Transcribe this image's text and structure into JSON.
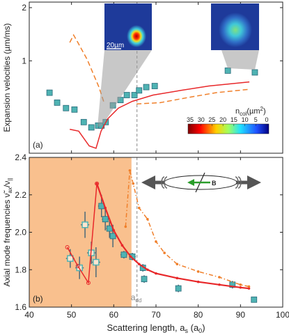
{
  "chart_data": [
    {
      "type": "scatter",
      "panel_label": "(a)",
      "ylabel": "Expansion velocities (µm/ms)",
      "log_y": true,
      "ylim": [
        0.3,
        2.15
      ],
      "yticks": [
        1,
        2
      ],
      "xlim": [
        40,
        100
      ],
      "vline": 65.5,
      "scalebar_label": "20µm",
      "colorbar_label": [
        "n",
        "col",
        "(µm",
        "2",
        ")"
      ],
      "colorbar_lim": [
        35,
        0
      ],
      "colorbar_ticks": [
        35,
        30,
        25,
        20,
        15,
        10,
        5,
        0
      ],
      "series": [
        {
          "color": "#4fb3b3",
          "marker": "square",
          "x": [
            44.8,
            46.6,
            48.7,
            50.7,
            52.9,
            54.7,
            56.3,
            57.1,
            58.1,
            59.8,
            61.6,
            63.1,
            64.9,
            66.0,
            67.7,
            69.7,
            87.0,
            93.4
          ],
          "values": [
            0.66,
            0.58,
            0.54,
            0.53,
            0.45,
            0.42,
            0.43,
            0.43,
            0.45,
            0.56,
            0.6,
            0.64,
            0.64,
            0.68,
            0.71,
            0.72,
            0.88,
            0.86
          ]
        },
        {
          "color": "#e8282a",
          "line": true,
          "x": [
            49.6,
            51.7,
            54.2,
            55.8,
            57.0,
            58.6,
            61.1,
            64.4,
            69.3,
            75.9,
            82.5,
            92.1
          ],
          "values": [
            0.41,
            0.4,
            0.33,
            0.32,
            0.4,
            0.47,
            0.54,
            0.59,
            0.64,
            0.68,
            0.72,
            0.76
          ]
        },
        {
          "color": "#f07f2a",
          "line": true,
          "dash": "dash",
          "x": [
            49.6,
            50.5,
            51.5,
            53.7,
            56.5,
            57.8,
            null,
            65.4,
            71.0,
            77.6,
            84.2,
            92.1
          ],
          "values": [
            1.27,
            1.4,
            1.27,
            1.02,
            0.71,
            0.57,
            null,
            0.57,
            0.58,
            0.62,
            0.66,
            0.69
          ]
        }
      ]
    },
    {
      "type": "scatter",
      "panel_label": "(b)",
      "ylabel": [
        "Axial mode frequencies ν̃",
        "ax",
        "/ν",
        "||"
      ],
      "xlabel": [
        "Scattering length, a",
        "s",
        " (a",
        "0",
        ")"
      ],
      "xlim": [
        40,
        100
      ],
      "xticks": [
        40,
        50,
        60,
        70,
        80,
        90,
        100
      ],
      "ylim": [
        1.6,
        2.4
      ],
      "yticks": [
        {
          "value": 1.6,
          "label": "1.6"
        },
        {
          "value": 1.8,
          "label": "1.8"
        },
        {
          "value": 2.0,
          "label": "2.0"
        },
        {
          "value": 2.2,
          "label": "2.2"
        },
        {
          "value": 2.4,
          "label": "2.4"
        }
      ],
      "shaded_region": [
        40,
        64.2
      ],
      "shade_color": "#f9c08e",
      "vline": 65.5,
      "vline_label": [
        "a",
        "dd"
      ],
      "field_label": "B",
      "series": [
        {
          "color": "#4fb3b3",
          "marker": "square",
          "x": [
            57.1,
            58.0,
            59.0,
            59.8,
            62.4,
            64.4,
            66.9,
            67.2,
            75.3,
            88.1,
            93.2
          ],
          "values": [
            2.14,
            2.07,
            2.02,
            1.98,
            1.88,
            1.87,
            1.81,
            1.75,
            1.7,
            1.72,
            1.64
          ],
          "errors": [
            0.06,
            0.06,
            0.05,
            0.06,
            0.02,
            0.02,
            0.02,
            0.02,
            0.02,
            0.02,
            0.01
          ],
          "xerr": [
            0.8,
            0.8,
            0.8,
            0.8,
            0.8,
            0.8,
            0.6,
            0.6,
            0.6,
            0.6,
            0.6
          ]
        },
        {
          "color": "#4fb3b3",
          "marker": "open-square",
          "x": [
            49.7,
            51.9,
            53.2,
            54.7,
            55.8
          ],
          "values": [
            1.86,
            1.81,
            2.04,
            1.89,
            1.84
          ],
          "errors": [
            0.05,
            0.06,
            0.07,
            0.06,
            0.08
          ],
          "xerr": [
            1,
            1,
            1,
            1,
            1
          ]
        },
        {
          "color": "#e8282a",
          "line": true,
          "marker": "open-circle",
          "x": [
            49,
            51.5,
            54,
            56
          ],
          "values": [
            1.92,
            1.82,
            1.73,
            2.26
          ]
        },
        {
          "color": "#e8282a",
          "line": true,
          "width": 2.2,
          "marker": "dot",
          "x": [
            56,
            58,
            60,
            62,
            64,
            66,
            68,
            70,
            75,
            80,
            85,
            90,
            92
          ],
          "values": [
            2.26,
            2.13,
            2.01,
            1.93,
            1.87,
            1.83,
            1.8,
            1.78,
            1.755,
            1.735,
            1.72,
            1.705,
            1.7
          ]
        },
        {
          "color": "#f07f2a",
          "line": true,
          "dash": "dashdot",
          "marker": "dot",
          "x": [
            62.8,
            63.8,
            64.6,
            66,
            68,
            70,
            72,
            75,
            80,
            85,
            90,
            92
          ],
          "values": [
            2.03,
            2.33,
            2.26,
            2.13,
            2.07,
            1.95,
            1.89,
            1.83,
            1.79,
            1.76,
            1.72,
            1.71
          ]
        }
      ]
    }
  ]
}
